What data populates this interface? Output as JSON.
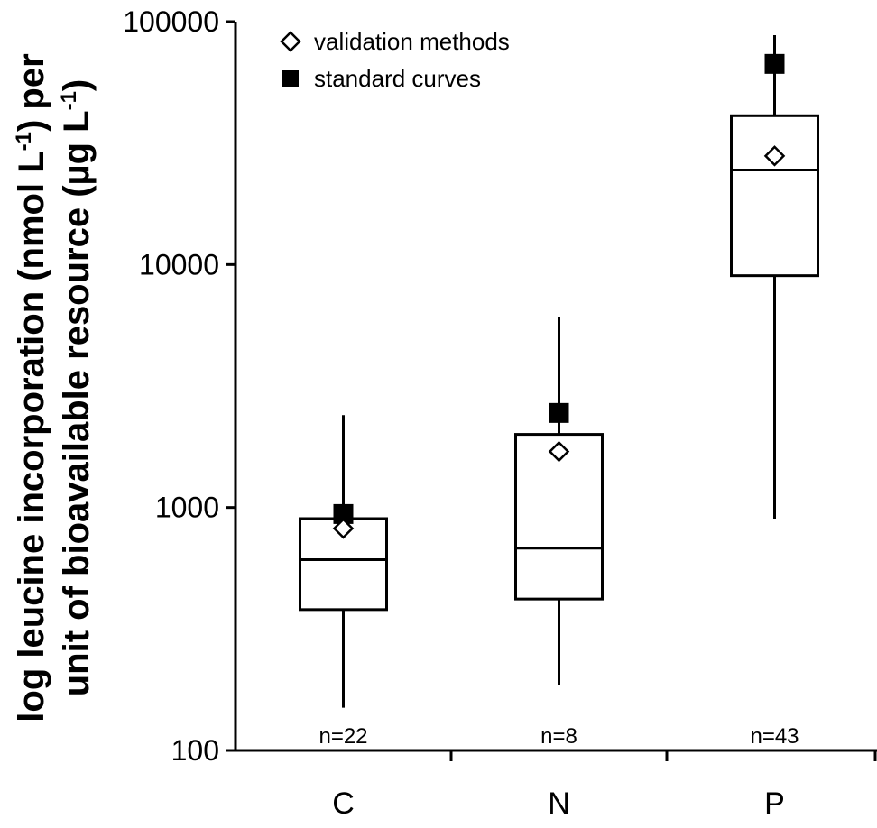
{
  "chart_data": {
    "type": "box",
    "yscale": "log",
    "ylim": [
      100,
      100000
    ],
    "y_ticks": [
      "100",
      "1000",
      "10000",
      "100000"
    ],
    "ylabel_line1": "log leucine incorporation (nmol L",
    "ylabel_sup1": "-1",
    "ylabel_line1_end": ") per",
    "ylabel_line2": "unit of bioavailable resource (µg L",
    "ylabel_sup2": "-1",
    "ylabel_line2_end": ")",
    "categories": [
      "C",
      "N",
      "P"
    ],
    "boxes": [
      {
        "category": "C",
        "whisker_low": 150,
        "q1": 380,
        "median": 610,
        "q3": 900,
        "whisker_high": 2400,
        "validation_methods": 820,
        "standard_curves": 940,
        "n_label": "n=22"
      },
      {
        "category": "N",
        "whisker_low": 185,
        "q1": 420,
        "median": 680,
        "q3": 2000,
        "whisker_high": 6100,
        "validation_methods": 1700,
        "standard_curves": 2450,
        "n_label": "n=8"
      },
      {
        "category": "P",
        "whisker_low": 900,
        "q1": 9000,
        "median": 24500,
        "q3": 41000,
        "whisker_high": 88000,
        "validation_methods": 28000,
        "standard_curves": 67000,
        "n_label": "n=43"
      }
    ],
    "legend": [
      {
        "marker": "open-diamond",
        "label": "validation methods"
      },
      {
        "marker": "filled-square",
        "label": "standard curves"
      }
    ],
    "grid": false
  }
}
